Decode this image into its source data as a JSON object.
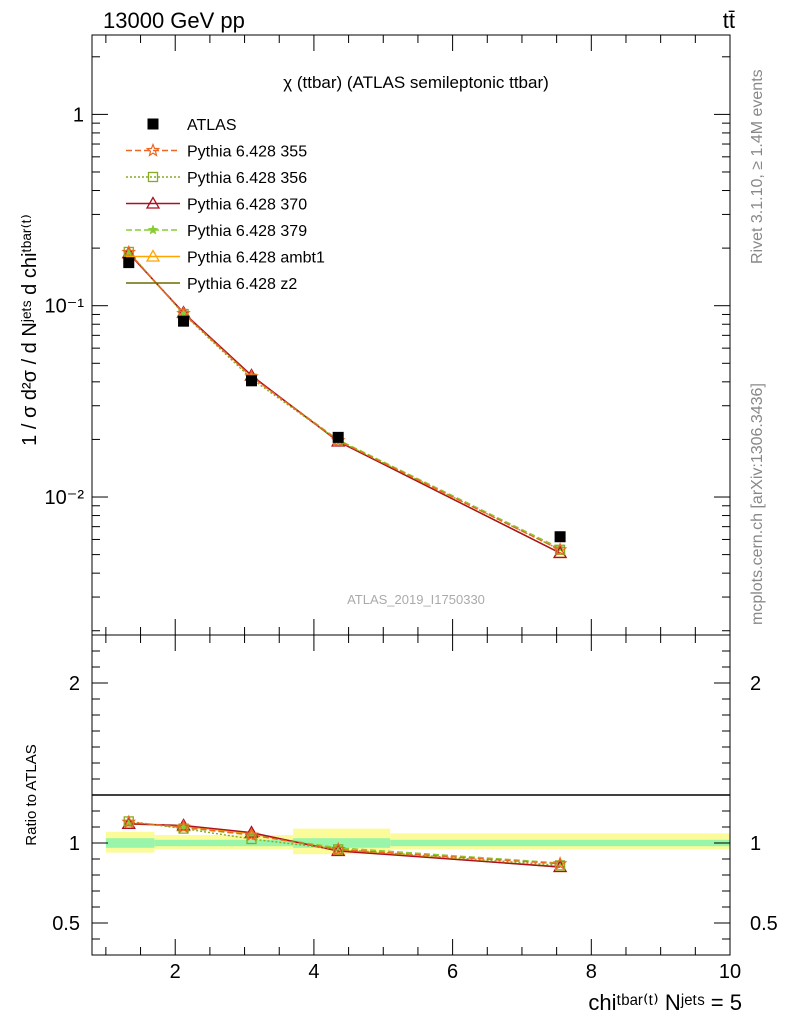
{
  "header": {
    "energy_label": "13000 GeV pp",
    "process_label": "tt̄"
  },
  "side_labels": {
    "rivet": "Rivet 3.1.10, ≥ 1.4M events",
    "source": "mcplots.cern.ch [arXiv:1306.3436]"
  },
  "chart_data": [
    {
      "type": "line",
      "title": "χ (ttbar) (ATLAS semileptonic ttbar)",
      "watermark": "ATLAS_2019_I1750330",
      "ylabel": "1 / σ d²σ / d Nʲᵉᵗˢ d chiᵗᵇᵃʳ⁽ᵗ⁾",
      "yscale": "log",
      "ylim": [
        0.0019,
        2.6
      ],
      "xlim": [
        0.8,
        10.0
      ],
      "y_tick_labels": [
        "1",
        "10⁻¹",
        "10⁻²"
      ],
      "legend_position": "top-left",
      "x": [
        1.33,
        2.12,
        3.1,
        4.35,
        7.55
      ],
      "series": [
        {
          "name": "ATLAS",
          "color": "#000000",
          "marker": "square",
          "values": [
            0.168,
            0.083,
            0.0405,
            0.0205,
            0.0062
          ]
        },
        {
          "name": "Pythia 6.428 355",
          "color": "#ee6622",
          "marker": "star-open",
          "style": "dashed",
          "values": [
            0.19,
            0.091,
            0.0425,
            0.0197,
            0.0053
          ]
        },
        {
          "name": "Pythia 6.428 356",
          "color": "#88aa22",
          "marker": "square-open",
          "style": "dotted",
          "values": [
            0.191,
            0.0905,
            0.0415,
            0.0197,
            0.0053
          ]
        },
        {
          "name": "Pythia 6.428 370",
          "color": "#aa1122",
          "marker": "triangle-open",
          "style": "solid",
          "values": [
            0.188,
            0.092,
            0.0432,
            0.0195,
            0.0051
          ]
        },
        {
          "name": "Pythia 6.428 379",
          "color": "#88cc33",
          "marker": "star",
          "style": "dashed",
          "values": [
            0.19,
            0.091,
            0.0426,
            0.0199,
            0.0054
          ]
        },
        {
          "name": "Pythia 6.428 ambt1",
          "color": "#ffa500",
          "marker": "triangle-open",
          "style": "solid",
          "values": [
            0.188,
            0.0915,
            0.043,
            0.0196,
            0.0051
          ]
        },
        {
          "name": "Pythia 6.428 z2",
          "color": "#6b6b00",
          "marker": "none",
          "style": "solid",
          "values": [
            0.188,
            0.0915,
            0.043,
            0.0195,
            0.0051
          ]
        }
      ]
    },
    {
      "type": "line",
      "ylabel": "Ratio to ATLAS",
      "xlabel": "chiᵗᵇᵃʳ⁽ᵗ⁾ Nʲᵉᵗˢ = 5",
      "ylim": [
        0.3,
        2.3
      ],
      "xlim": [
        0.8,
        10.0
      ],
      "y_tick_labels": [
        "0.5",
        "1",
        "2"
      ],
      "x_tick_labels": [
        "2",
        "4",
        "6",
        "8",
        "10"
      ],
      "x": [
        1.33,
        2.12,
        3.1,
        4.35,
        7.55
      ],
      "bands": [
        {
          "xlow": 1.0,
          "xhigh": 1.7,
          "inner": [
            0.97,
            1.03
          ],
          "outer": [
            0.94,
            1.07
          ]
        },
        {
          "xlow": 1.7,
          "xhigh": 3.7,
          "inner": [
            0.98,
            1.02
          ],
          "outer": [
            0.96,
            1.05
          ]
        },
        {
          "xlow": 3.7,
          "xhigh": 5.1,
          "inner": [
            0.97,
            1.03
          ],
          "outer": [
            0.93,
            1.09
          ]
        },
        {
          "xlow": 5.1,
          "xhigh": 10.0,
          "inner": [
            0.98,
            1.02
          ],
          "outer": [
            0.96,
            1.06
          ]
        }
      ],
      "series": [
        {
          "name": "Pythia 6.428 355",
          "color": "#ee6622",
          "marker": "star-open",
          "style": "dashed",
          "values": [
            1.13,
            1.1,
            1.05,
            0.96,
            0.87
          ]
        },
        {
          "name": "Pythia 6.428 356",
          "color": "#88aa22",
          "marker": "square-open",
          "style": "dotted",
          "values": [
            1.135,
            1.09,
            1.025,
            0.96,
            0.86
          ]
        },
        {
          "name": "Pythia 6.428 370",
          "color": "#aa1122",
          "marker": "triangle-open",
          "style": "solid",
          "values": [
            1.12,
            1.11,
            1.065,
            0.95,
            0.85
          ]
        },
        {
          "name": "Pythia 6.428 379",
          "color": "#88cc33",
          "marker": "star",
          "style": "dashed",
          "values": [
            1.13,
            1.095,
            1.05,
            0.97,
            0.875
          ]
        },
        {
          "name": "Pythia 6.428 ambt1",
          "color": "#ffa500",
          "marker": "triangle-open",
          "style": "solid",
          "values": [
            1.12,
            1.105,
            1.06,
            0.955,
            0.85
          ]
        },
        {
          "name": "Pythia 6.428 z2",
          "color": "#6b6b00",
          "marker": "none",
          "style": "solid",
          "values": [
            1.12,
            1.105,
            1.06,
            0.955,
            0.85
          ]
        }
      ]
    }
  ]
}
